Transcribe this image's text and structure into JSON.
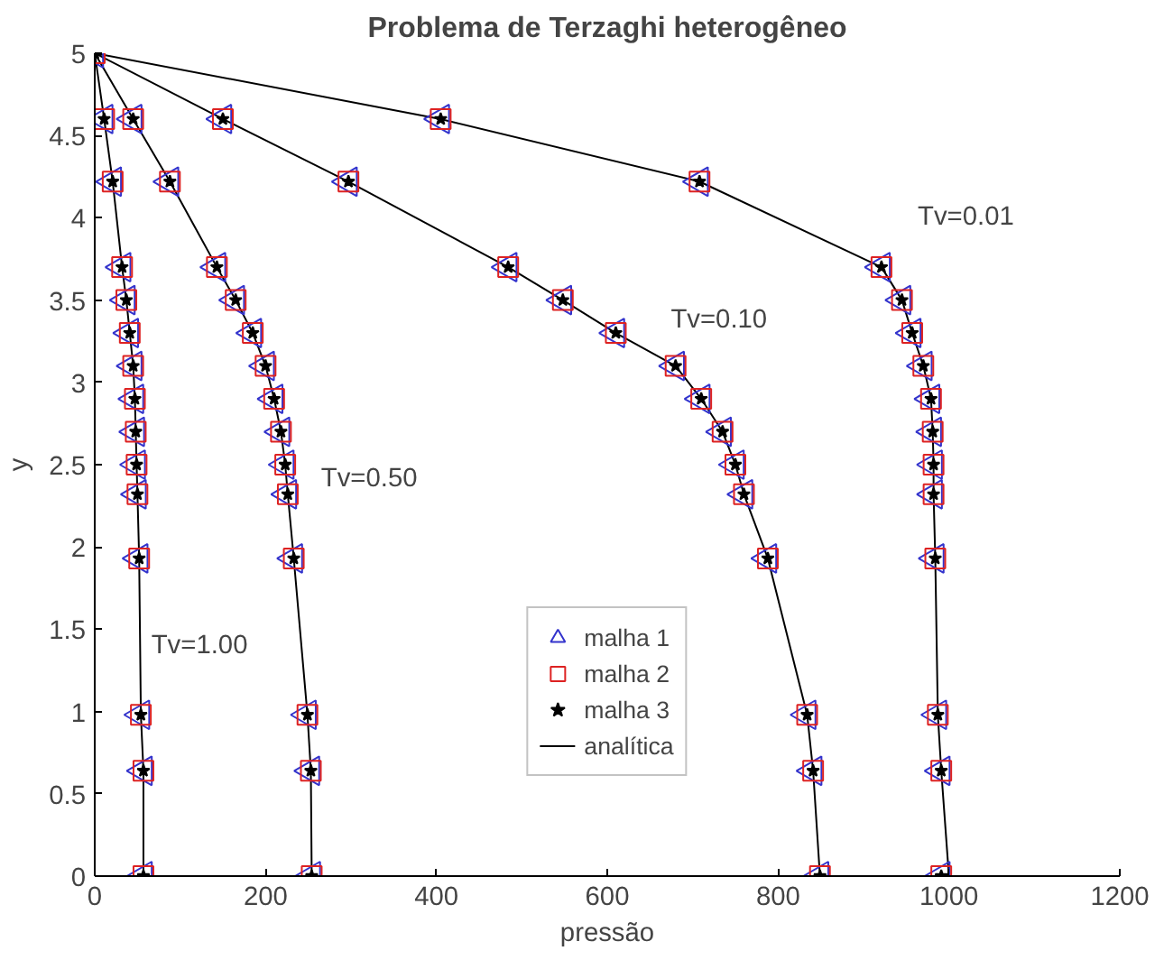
{
  "chart_data": {
    "type": "scatter",
    "title": "Problema de Terzaghi heterogêneo",
    "xlabel": "pressão",
    "ylabel": "y",
    "xlim": [
      0,
      1200
    ],
    "xticks": [
      0,
      200,
      400,
      600,
      800,
      1000,
      1200
    ],
    "ylim": [
      0,
      5
    ],
    "yticks": [
      0,
      0.5,
      1,
      1.5,
      2,
      2.5,
      3,
      3.5,
      4,
      4.5,
      5
    ],
    "grid": false,
    "legend": "bottom",
    "series": [
      {
        "name": "malha 1",
        "color": "#3333cc",
        "marker": "triangle",
        "x": [
          0,
          11,
          21,
          32,
          37,
          41,
          45,
          47,
          48,
          49,
          50,
          52,
          54,
          57,
          57,
          45,
          88,
          143,
          165,
          185,
          200,
          210,
          218,
          223,
          226,
          233,
          249,
          253,
          254,
          150,
          297,
          484,
          548,
          610,
          680,
          710,
          735,
          750,
          760,
          788,
          834,
          841,
          849,
          405,
          708,
          921,
          945,
          957,
          970,
          979,
          981,
          982,
          982,
          984,
          987,
          991,
          991
        ],
        "values": [
          5,
          4.6,
          4.22,
          3.7,
          3.5,
          3.3,
          3.1,
          2.9,
          2.7,
          2.5,
          2.32,
          1.93,
          0.98,
          0.64,
          0,
          4.6,
          4.22,
          3.7,
          3.5,
          3.3,
          3.1,
          2.9,
          2.7,
          2.5,
          2.32,
          1.93,
          0.98,
          0.64,
          0,
          4.6,
          4.22,
          3.7,
          3.5,
          3.3,
          3.1,
          2.9,
          2.7,
          2.5,
          2.32,
          1.93,
          0.98,
          0.64,
          0,
          4.6,
          4.22,
          3.7,
          3.5,
          3.3,
          3.1,
          2.9,
          2.7,
          2.5,
          2.32,
          1.93,
          0.98,
          0.64,
          0
        ]
      },
      {
        "name": "malha 2",
        "color": "#dd2222",
        "marker": "square",
        "x": [
          0,
          11,
          21,
          32,
          37,
          41,
          45,
          47,
          48,
          49,
          50,
          52,
          54,
          57,
          57,
          45,
          88,
          143,
          165,
          185,
          200,
          210,
          218,
          223,
          226,
          233,
          249,
          253,
          254,
          150,
          297,
          484,
          548,
          610,
          680,
          710,
          735,
          750,
          760,
          788,
          834,
          841,
          849,
          405,
          708,
          921,
          945,
          957,
          970,
          979,
          981,
          982,
          982,
          984,
          987,
          991,
          991
        ],
        "values": [
          5,
          4.6,
          4.22,
          3.7,
          3.5,
          3.3,
          3.1,
          2.9,
          2.7,
          2.5,
          2.32,
          1.93,
          0.98,
          0.64,
          0,
          4.6,
          4.22,
          3.7,
          3.5,
          3.3,
          3.1,
          2.9,
          2.7,
          2.5,
          2.32,
          1.93,
          0.98,
          0.64,
          0,
          4.6,
          4.22,
          3.7,
          3.5,
          3.3,
          3.1,
          2.9,
          2.7,
          2.5,
          2.32,
          1.93,
          0.98,
          0.64,
          0,
          4.6,
          4.22,
          3.7,
          3.5,
          3.3,
          3.1,
          2.9,
          2.7,
          2.5,
          2.32,
          1.93,
          0.98,
          0.64,
          0
        ]
      },
      {
        "name": "malha 3",
        "color": "#000000",
        "marker": "star",
        "x": [
          0,
          11,
          21,
          32,
          37,
          41,
          45,
          47,
          48,
          49,
          50,
          52,
          54,
          57,
          57,
          45,
          88,
          143,
          165,
          185,
          200,
          210,
          218,
          223,
          226,
          233,
          249,
          253,
          254,
          150,
          297,
          484,
          548,
          610,
          680,
          710,
          735,
          750,
          760,
          788,
          834,
          841,
          849,
          405,
          708,
          921,
          945,
          957,
          970,
          979,
          981,
          982,
          982,
          984,
          987,
          991,
          991
        ],
        "values": [
          5,
          4.6,
          4.22,
          3.7,
          3.5,
          3.3,
          3.1,
          2.9,
          2.7,
          2.5,
          2.32,
          1.93,
          0.98,
          0.64,
          0,
          4.6,
          4.22,
          3.7,
          3.5,
          3.3,
          3.1,
          2.9,
          2.7,
          2.5,
          2.32,
          1.93,
          0.98,
          0.64,
          0,
          4.6,
          4.22,
          3.7,
          3.5,
          3.3,
          3.1,
          2.9,
          2.7,
          2.5,
          2.32,
          1.93,
          0.98,
          0.64,
          0,
          4.6,
          4.22,
          3.7,
          3.5,
          3.3,
          3.1,
          2.9,
          2.7,
          2.5,
          2.32,
          1.93,
          0.98,
          0.64,
          0
        ]
      },
      {
        "name": "analítica",
        "type": "line",
        "color": "#000000",
        "x": [
          0,
          11,
          21,
          32,
          37,
          41,
          45,
          47,
          48,
          49,
          50,
          52,
          54,
          57,
          57,
          null,
          0,
          45,
          88,
          143,
          165,
          185,
          200,
          210,
          218,
          223,
          226,
          233,
          249,
          253,
          254,
          null,
          0,
          150,
          297,
          484,
          548,
          610,
          680,
          710,
          735,
          750,
          760,
          788,
          834,
          841,
          849,
          null,
          0,
          405,
          708,
          921,
          945,
          957,
          970,
          979,
          981,
          982,
          982,
          984,
          987,
          991,
          1000
        ],
        "values": [
          5,
          4.6,
          4.22,
          3.7,
          3.5,
          3.3,
          3.1,
          2.9,
          2.7,
          2.5,
          2.32,
          1.93,
          0.98,
          0.64,
          0,
          null,
          5,
          4.6,
          4.22,
          3.7,
          3.5,
          3.3,
          3.1,
          2.9,
          2.7,
          2.5,
          2.32,
          1.93,
          0.98,
          0.64,
          0,
          null,
          5,
          4.6,
          4.22,
          3.7,
          3.5,
          3.3,
          3.1,
          2.9,
          2.7,
          2.5,
          2.32,
          1.93,
          0.98,
          0.64,
          0,
          null,
          5,
          4.6,
          4.22,
          3.7,
          3.5,
          3.3,
          3.1,
          2.9,
          2.7,
          2.5,
          2.32,
          1.93,
          0.98,
          0.64,
          0
        ]
      }
    ],
    "annotations": [
      "Tv=0.01",
      "Tv=0.10",
      "Tv=0.50",
      "Tv=1.00"
    ]
  }
}
